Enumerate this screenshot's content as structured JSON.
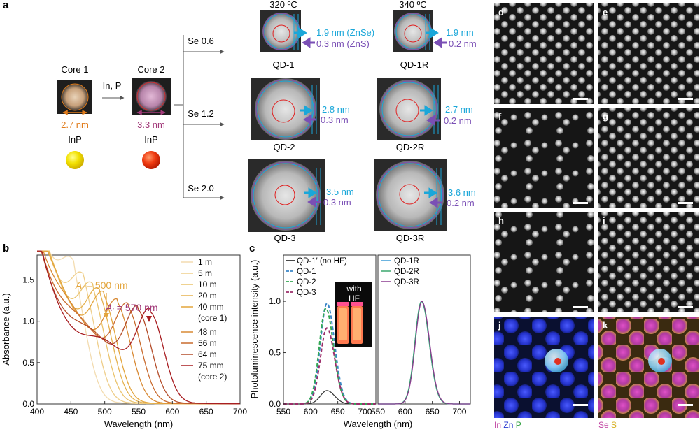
{
  "panel_a": {
    "letter": "a",
    "core1": {
      "title": "Core 1",
      "size": "2.7 nm",
      "material": "InP"
    },
    "core2": {
      "title": "Core 2",
      "size": "3.3 nm",
      "material": "InP"
    },
    "reaction": "In, P",
    "temps": [
      "320 ºC",
      "340 ºC"
    ],
    "rows": [
      {
        "label": "Se 0.6",
        "left_name": "QD-1",
        "left_znse": "1.9 nm (ZnSe)",
        "left_zns": "0.3 nm (ZnS)",
        "right_name": "QD-1R",
        "right_znse": "1.9 nm",
        "right_zns": "0.2 nm"
      },
      {
        "label": "Se 1.2",
        "left_name": "QD-2",
        "left_znse": "2.8 nm",
        "left_zns": "0.3 nm",
        "right_name": "QD-2R",
        "right_znse": "2.7 nm",
        "right_zns": "0.2 nm"
      },
      {
        "label": "Se 2.0",
        "left_name": "QD-3",
        "left_znse": "3.5 nm",
        "left_zns": "0.3 nm",
        "right_name": "QD-3R",
        "right_znse": "3.6 nm",
        "right_zns": "0.2 nm"
      }
    ],
    "colors": {
      "znse": "#1aa7d9",
      "zns": "#7a4fb5",
      "size1": "#e07b1a",
      "size2": "#a23a7a"
    }
  },
  "panel_b": {
    "letter": "b",
    "ylabel": "Absorbance (a.u.)",
    "xlabel": "Wavelength (nm)",
    "annot1": "A",
    "annot1_sub": "f",
    "annot1_val": " = 500 nm",
    "annot2": "A",
    "annot2_sub": "f",
    "annot2_val": " = 570 nm",
    "legend": [
      "1 m",
      "5 m",
      "10 m",
      "20 m",
      "40 mm",
      "(core 1)",
      "48 m",
      "56 m",
      "64 m",
      "75 mm",
      "(core 2)"
    ]
  },
  "panel_c": {
    "letter": "c",
    "ylabel": "Photoluminescence intensity (a.u.)",
    "xlabel": "Wavelength (nm)",
    "legend_left": [
      "QD-1′ (no HF)",
      "QD-1",
      "QD-2",
      "QD-3"
    ],
    "legend_right": [
      "QD-1R",
      "QD-2R",
      "QD-3R"
    ],
    "inset_text": [
      "with",
      "HF"
    ]
  },
  "panel_micro": {
    "letters": [
      "d",
      "e",
      "f",
      "g",
      "h",
      "i",
      "j",
      "k"
    ],
    "j_legend": [
      "In",
      "Zn",
      "P"
    ],
    "k_legend": [
      "Se",
      "S"
    ]
  },
  "chart_data": [
    {
      "type": "line",
      "panel": "b",
      "xlabel": "Wavelength (nm)",
      "ylabel": "Absorbance (a.u.)",
      "xlim": [
        400,
        700
      ],
      "ylim": [
        0,
        1.8
      ],
      "xticks": [
        400,
        450,
        500,
        550,
        600,
        650,
        700
      ],
      "yticks": [
        0.0,
        0.5,
        1.0,
        1.5
      ],
      "series": [
        {
          "name": "1 m",
          "peak": 455,
          "color": "#f3dcb0"
        },
        {
          "name": "5 m",
          "peak": 470,
          "color": "#efcf8c"
        },
        {
          "name": "10 m",
          "peak": 483,
          "color": "#eac36c"
        },
        {
          "name": "20 m",
          "peak": 493,
          "color": "#e5b24f"
        },
        {
          "name": "40 mm",
          "peak": 500,
          "color": "#e3a53c"
        },
        {
          "name": "48 m",
          "peak": 520,
          "color": "#d88a35"
        },
        {
          "name": "56 m",
          "peak": 535,
          "color": "#c96b2e"
        },
        {
          "name": "64 m",
          "peak": 550,
          "color": "#b44d2a"
        },
        {
          "name": "75 mm",
          "peak": 568,
          "color": "#a81e22"
        }
      ]
    },
    {
      "type": "line",
      "panel": "c-left",
      "xlabel": "Wavelength (nm)",
      "ylabel": "Photoluminescence intensity (a.u.)",
      "xlim": [
        550,
        720
      ],
      "ylim": [
        0,
        1.45
      ],
      "xticks": [
        550,
        600,
        650,
        700
      ],
      "yticks": [
        0.0,
        0.5,
        1.0
      ],
      "series": [
        {
          "name": "QD-1′ (no HF)",
          "peak_x": 630,
          "peak_y": 0.13,
          "color": "#333333",
          "dash": false
        },
        {
          "name": "QD-1",
          "peak_x": 630,
          "peak_y": 0.98,
          "color": "#3a86c8",
          "dash": true
        },
        {
          "name": "QD-2",
          "peak_x": 628,
          "peak_y": 0.93,
          "color": "#34a853",
          "dash": true
        },
        {
          "name": "QD-3",
          "peak_x": 630,
          "peak_y": 0.74,
          "color": "#9c2f6b",
          "dash": true
        }
      ]
    },
    {
      "type": "line",
      "panel": "c-right",
      "xlim": [
        550,
        720
      ],
      "ylim": [
        0,
        1.45
      ],
      "xticks": [
        550,
        600,
        650,
        700
      ],
      "series": [
        {
          "name": "QD-1R",
          "peak_x": 630,
          "peak_y": 1.0,
          "color": "#3a9bd5",
          "dash": false
        },
        {
          "name": "QD-2R",
          "peak_x": 630,
          "peak_y": 1.0,
          "color": "#3aa76d",
          "dash": false
        },
        {
          "name": "QD-3R",
          "peak_x": 631,
          "peak_y": 1.0,
          "color": "#8a3a8f",
          "dash": false
        }
      ]
    }
  ]
}
